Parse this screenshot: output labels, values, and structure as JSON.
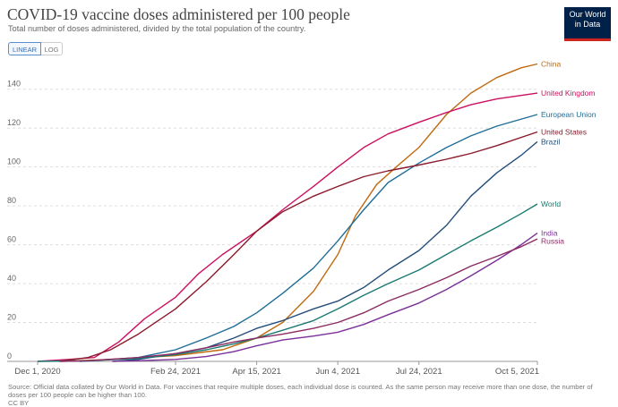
{
  "header": {
    "title": "COVID-19 vaccine doses administered per 100 people",
    "subtitle": "Total number of doses administered, divided by the total population of the country.",
    "logo_line1": "Our World",
    "logo_line2": "in Data"
  },
  "controls": {
    "linear_label": "LINEAR",
    "log_label": "LOG"
  },
  "footer": {
    "source": "Source: Official data collated by Our World in Data. For vaccines that require multiple doses, each individual dose is counted. As the same person may receive more than one dose, the number of doses per 100 people can be higher than 100.",
    "license": "CC BY"
  },
  "chart_data": {
    "type": "line",
    "x_axis_type": "date",
    "xlim": [
      "2020-12-01",
      "2021-10-05"
    ],
    "ylim": [
      0,
      150
    ],
    "x_ticks": [
      {
        "date": "2020-12-01",
        "label": "Dec 1, 2020"
      },
      {
        "date": "2021-02-24",
        "label": "Feb 24, 2021"
      },
      {
        "date": "2021-04-15",
        "label": "Apr 15, 2021"
      },
      {
        "date": "2021-06-04",
        "label": "Jun 4, 2021"
      },
      {
        "date": "2021-07-24",
        "label": "Jul 24, 2021"
      },
      {
        "date": "2021-10-05",
        "label": "Oct 5, 2021"
      }
    ],
    "y_ticks": [
      0,
      20,
      40,
      60,
      80,
      100,
      120,
      140
    ],
    "grid": "horizontal dashed",
    "legend": "right, labels at line ends",
    "series": [
      {
        "name": "China",
        "color": "#c06a10",
        "points": [
          [
            "2020-12-15",
            0
          ],
          [
            "2021-01-15",
            1
          ],
          [
            "2021-02-24",
            3
          ],
          [
            "2021-03-25",
            6
          ],
          [
            "2021-04-15",
            12
          ],
          [
            "2021-05-01",
            20
          ],
          [
            "2021-05-20",
            36
          ],
          [
            "2021-06-04",
            55
          ],
          [
            "2021-06-15",
            75
          ],
          [
            "2021-06-28",
            91
          ],
          [
            "2021-07-10",
            100
          ],
          [
            "2021-07-24",
            110
          ],
          [
            "2021-08-10",
            127
          ],
          [
            "2021-08-25",
            138
          ],
          [
            "2021-09-10",
            146
          ],
          [
            "2021-09-25",
            151
          ],
          [
            "2021-10-05",
            153
          ]
        ]
      },
      {
        "name": "United Kingdom",
        "color": "#cc0f5f",
        "points": [
          [
            "2020-12-01",
            0
          ],
          [
            "2020-12-20",
            1
          ],
          [
            "2021-01-05",
            2
          ],
          [
            "2021-01-20",
            10
          ],
          [
            "2021-02-05",
            22
          ],
          [
            "2021-02-24",
            33
          ],
          [
            "2021-03-10",
            45
          ],
          [
            "2021-03-25",
            55
          ],
          [
            "2021-04-15",
            67
          ],
          [
            "2021-05-01",
            78
          ],
          [
            "2021-05-20",
            90
          ],
          [
            "2021-06-04",
            100
          ],
          [
            "2021-06-20",
            110
          ],
          [
            "2021-07-05",
            117
          ],
          [
            "2021-07-24",
            123
          ],
          [
            "2021-08-10",
            128
          ],
          [
            "2021-08-25",
            132
          ],
          [
            "2021-09-10",
            135
          ],
          [
            "2021-10-05",
            138
          ]
        ]
      },
      {
        "name": "European Union",
        "color": "#1f6e97",
        "points": [
          [
            "2020-12-27",
            0
          ],
          [
            "2021-01-15",
            1
          ],
          [
            "2021-02-01",
            2
          ],
          [
            "2021-02-24",
            6
          ],
          [
            "2021-03-15",
            12
          ],
          [
            "2021-04-01",
            18
          ],
          [
            "2021-04-15",
            25
          ],
          [
            "2021-05-01",
            35
          ],
          [
            "2021-05-20",
            48
          ],
          [
            "2021-06-04",
            62
          ],
          [
            "2021-06-20",
            78
          ],
          [
            "2021-07-05",
            92
          ],
          [
            "2021-07-24",
            102
          ],
          [
            "2021-08-10",
            110
          ],
          [
            "2021-08-25",
            116
          ],
          [
            "2021-09-10",
            121
          ],
          [
            "2021-10-05",
            127
          ]
        ]
      },
      {
        "name": "United States",
        "color": "#8b1a2b",
        "points": [
          [
            "2020-12-14",
            0
          ],
          [
            "2021-01-01",
            2
          ],
          [
            "2021-01-15",
            6
          ],
          [
            "2021-02-01",
            14
          ],
          [
            "2021-02-24",
            27
          ],
          [
            "2021-03-15",
            41
          ],
          [
            "2021-04-01",
            55
          ],
          [
            "2021-04-15",
            67
          ],
          [
            "2021-05-01",
            77
          ],
          [
            "2021-05-20",
            85
          ],
          [
            "2021-06-04",
            90
          ],
          [
            "2021-06-20",
            95
          ],
          [
            "2021-07-05",
            98
          ],
          [
            "2021-07-24",
            101
          ],
          [
            "2021-08-10",
            104
          ],
          [
            "2021-08-25",
            107
          ],
          [
            "2021-09-10",
            111
          ],
          [
            "2021-10-05",
            118
          ]
        ]
      },
      {
        "name": "Brazil",
        "color": "#244e7a",
        "points": [
          [
            "2021-01-17",
            0
          ],
          [
            "2021-02-01",
            1
          ],
          [
            "2021-02-24",
            4
          ],
          [
            "2021-03-15",
            7
          ],
          [
            "2021-04-01",
            12
          ],
          [
            "2021-04-15",
            17
          ],
          [
            "2021-05-01",
            21
          ],
          [
            "2021-05-20",
            27
          ],
          [
            "2021-06-04",
            31
          ],
          [
            "2021-06-20",
            38
          ],
          [
            "2021-07-05",
            47
          ],
          [
            "2021-07-24",
            57
          ],
          [
            "2021-08-10",
            70
          ],
          [
            "2021-08-25",
            85
          ],
          [
            "2021-09-10",
            97
          ],
          [
            "2021-09-25",
            106
          ],
          [
            "2021-10-05",
            113
          ]
        ]
      },
      {
        "name": "World",
        "color": "#1a7a72",
        "points": [
          [
            "2020-12-01",
            0
          ],
          [
            "2021-01-01",
            0.3
          ],
          [
            "2021-02-01",
            1.5
          ],
          [
            "2021-02-24",
            3.5
          ],
          [
            "2021-03-15",
            6
          ],
          [
            "2021-04-01",
            9
          ],
          [
            "2021-04-15",
            12
          ],
          [
            "2021-05-01",
            16
          ],
          [
            "2021-05-20",
            21
          ],
          [
            "2021-06-04",
            27
          ],
          [
            "2021-06-20",
            34
          ],
          [
            "2021-07-05",
            40
          ],
          [
            "2021-07-24",
            47
          ],
          [
            "2021-08-10",
            55
          ],
          [
            "2021-08-25",
            62
          ],
          [
            "2021-09-10",
            69
          ],
          [
            "2021-09-25",
            76
          ],
          [
            "2021-10-05",
            81
          ]
        ]
      },
      {
        "name": "India",
        "color": "#7b2f98",
        "points": [
          [
            "2021-01-16",
            0
          ],
          [
            "2021-02-01",
            0.3
          ],
          [
            "2021-02-24",
            1
          ],
          [
            "2021-03-15",
            2.5
          ],
          [
            "2021-04-01",
            5
          ],
          [
            "2021-04-15",
            8
          ],
          [
            "2021-05-01",
            11
          ],
          [
            "2021-05-20",
            13
          ],
          [
            "2021-06-04",
            15
          ],
          [
            "2021-06-20",
            19
          ],
          [
            "2021-07-05",
            24
          ],
          [
            "2021-07-24",
            30
          ],
          [
            "2021-08-10",
            37
          ],
          [
            "2021-08-25",
            44
          ],
          [
            "2021-09-10",
            52
          ],
          [
            "2021-09-25",
            60
          ],
          [
            "2021-10-05",
            66
          ]
        ]
      },
      {
        "name": "Russia",
        "color": "#8c2b63",
        "points": [
          [
            "2020-12-15",
            0
          ],
          [
            "2021-01-01",
            0.3
          ],
          [
            "2021-02-01",
            2
          ],
          [
            "2021-02-24",
            4
          ],
          [
            "2021-03-15",
            7
          ],
          [
            "2021-04-01",
            10
          ],
          [
            "2021-04-15",
            12
          ],
          [
            "2021-05-01",
            14
          ],
          [
            "2021-05-20",
            17
          ],
          [
            "2021-06-04",
            20
          ],
          [
            "2021-06-20",
            25
          ],
          [
            "2021-07-05",
            31
          ],
          [
            "2021-07-24",
            37
          ],
          [
            "2021-08-10",
            43
          ],
          [
            "2021-08-25",
            49
          ],
          [
            "2021-09-10",
            54
          ],
          [
            "2021-09-25",
            59
          ],
          [
            "2021-10-05",
            63
          ]
        ]
      }
    ]
  }
}
